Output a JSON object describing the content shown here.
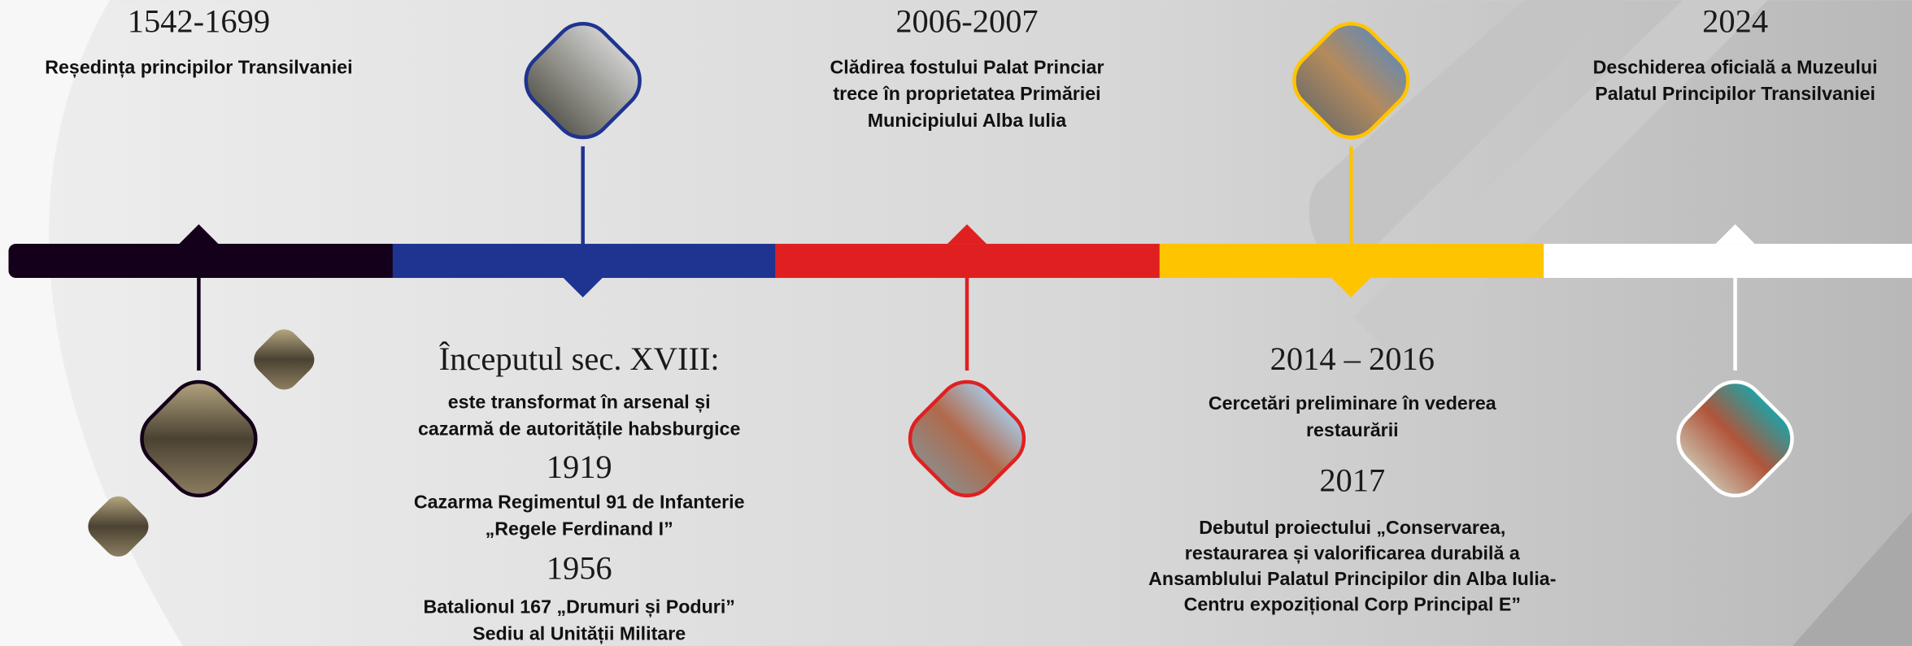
{
  "top": [
    {
      "year": "1542-1699",
      "lines": [
        "Reședința principilor Transilvaniei"
      ]
    },
    {
      "year": "2006-2007",
      "lines": [
        "Clădirea fostului Palat Princiar",
        "trece în proprietatea Primăriei",
        "Municipiului Alba Iulia"
      ]
    },
    {
      "year": "2024",
      "lines": [
        "Deschiderea oficială a Muzeului",
        "Palatul Principilor Transilvaniei"
      ]
    }
  ],
  "bottom": [
    {
      "year": "Începutul sec. XVIII:",
      "lines": [
        "este transformat în arsenal și",
        "cazarmă de autoritățile habsburgice"
      ]
    },
    {
      "year": "1919",
      "lines": [
        "Cazarma Regimentul 91 de Infanterie",
        "„Regele Ferdinand I”"
      ]
    },
    {
      "year": "1956",
      "lines": [
        "Batalionul 167 „Drumuri și Poduri”",
        "Sediu al Unității Militare"
      ]
    },
    {
      "year": "2014 – 2016",
      "lines": [
        "Cercetări preliminare în vederea",
        "restaurării"
      ]
    },
    {
      "year": "2017",
      "lines": [
        "Debutul proiectului „Conservarea,",
        "restaurarea și valorificarea durabilă a",
        "Ansamblului Palatul Principilor din Alba Iulia-",
        "Centru expozițional Corp Principal E”"
      ]
    }
  ]
}
